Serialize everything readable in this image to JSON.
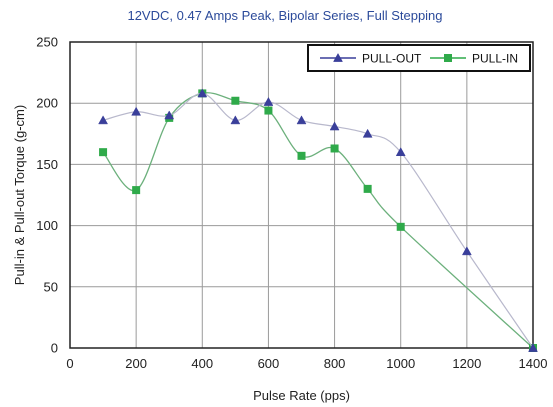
{
  "chart_data": {
    "type": "line",
    "title": "12VDC,  0.47 Amps Peak, Bipolar Series, Full Stepping",
    "xlabel": "Pulse Rate (pps)",
    "ylabel": "Pull-in & Pull-out Torque (g-cm)",
    "xlim": [
      0,
      1400
    ],
    "ylim": [
      0,
      250
    ],
    "x_ticks": [
      "0",
      "200",
      "400",
      "600",
      "800",
      "1000",
      "1200",
      "1400"
    ],
    "y_ticks": [
      "0",
      "50",
      "100",
      "150",
      "200",
      "250"
    ],
    "grid": true,
    "legend_position": "top-right",
    "series": [
      {
        "name": "PULL-OUT",
        "marker": "triangle",
        "color": "#3a3f9a",
        "x": [
          100,
          200,
          300,
          400,
          500,
          600,
          700,
          800,
          900,
          1000,
          1200,
          1400
        ],
        "y": [
          186,
          193,
          190,
          208,
          186,
          201,
          186,
          181,
          175,
          160,
          79,
          0
        ]
      },
      {
        "name": "PULL-IN",
        "marker": "square",
        "color": "#2faa4a",
        "x": [
          100,
          200,
          300,
          400,
          500,
          600,
          700,
          800,
          900,
          1000,
          1400
        ],
        "y": [
          160,
          129,
          188,
          208,
          202,
          194,
          157,
          163,
          130,
          99,
          0
        ]
      }
    ]
  }
}
